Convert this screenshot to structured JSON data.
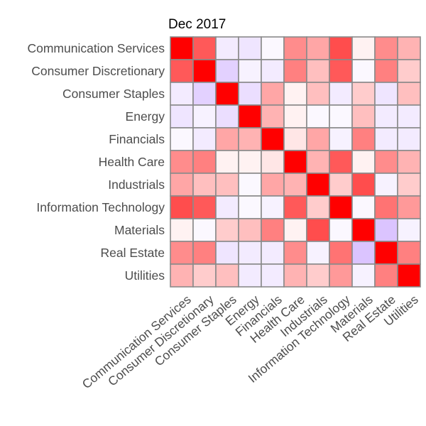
{
  "chart_data": {
    "type": "heatmap",
    "title": "Dec 2017",
    "categories": [
      "Communication Services",
      "Consumer Discretionary",
      "Consumer Staples",
      "Energy",
      "Financials",
      "Health Care",
      "Industrials",
      "Information Technology",
      "Materials",
      "Real Estate",
      "Utilities"
    ],
    "color_scale": {
      "low": "#b07cff",
      "mid": "#ffffff",
      "high": "#ff0000",
      "range": [
        -1,
        1
      ]
    },
    "legend": "none",
    "values": [
      [
        1.0,
        0.65,
        -0.15,
        -0.2,
        -0.05,
        0.45,
        0.35,
        0.7,
        0.05,
        0.45,
        0.3
      ],
      [
        0.65,
        1.0,
        -0.35,
        -0.1,
        -0.15,
        0.5,
        0.25,
        0.65,
        -0.05,
        0.5,
        0.2
      ],
      [
        -0.15,
        -0.35,
        1.0,
        -0.25,
        0.35,
        0.05,
        0.25,
        -0.15,
        0.2,
        -0.2,
        0.25
      ],
      [
        -0.2,
        -0.1,
        -0.25,
        1.0,
        0.3,
        0.05,
        -0.05,
        -0.05,
        0.25,
        -0.15,
        -0.15
      ],
      [
        -0.05,
        -0.15,
        0.35,
        0.3,
        1.0,
        0.1,
        0.35,
        -0.1,
        0.5,
        -0.15,
        -0.15
      ],
      [
        0.45,
        0.5,
        0.05,
        0.05,
        0.1,
        1.0,
        0.3,
        0.65,
        0.05,
        0.45,
        0.3
      ],
      [
        0.35,
        0.25,
        0.25,
        -0.05,
        0.35,
        0.3,
        1.0,
        0.2,
        0.7,
        -0.1,
        0.2
      ],
      [
        0.7,
        0.65,
        -0.15,
        -0.05,
        -0.1,
        0.65,
        0.2,
        1.0,
        -0.05,
        0.55,
        0.4
      ],
      [
        0.05,
        -0.05,
        0.2,
        0.25,
        0.5,
        0.05,
        0.7,
        -0.05,
        1.0,
        -0.45,
        -0.1
      ],
      [
        0.45,
        0.5,
        -0.2,
        -0.15,
        -0.15,
        0.45,
        -0.1,
        0.55,
        -0.45,
        1.0,
        0.5
      ],
      [
        0.3,
        0.2,
        0.25,
        -0.15,
        -0.15,
        0.3,
        0.2,
        0.4,
        -0.1,
        0.5,
        1.0
      ]
    ]
  }
}
